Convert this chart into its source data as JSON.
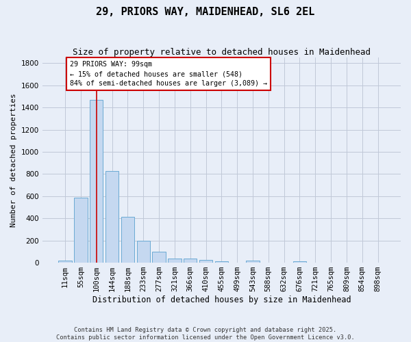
{
  "title": "29, PRIORS WAY, MAIDENHEAD, SL6 2EL",
  "subtitle": "Size of property relative to detached houses in Maidenhead",
  "xlabel": "Distribution of detached houses by size in Maidenhead",
  "ylabel": "Number of detached properties",
  "categories": [
    "11sqm",
    "55sqm",
    "100sqm",
    "144sqm",
    "188sqm",
    "233sqm",
    "277sqm",
    "321sqm",
    "366sqm",
    "410sqm",
    "455sqm",
    "499sqm",
    "543sqm",
    "588sqm",
    "632sqm",
    "676sqm",
    "721sqm",
    "765sqm",
    "809sqm",
    "854sqm",
    "898sqm"
  ],
  "bar_heights": [
    20,
    585,
    1470,
    830,
    415,
    200,
    100,
    40,
    35,
    25,
    15,
    0,
    20,
    0,
    0,
    15,
    0,
    0,
    0,
    0,
    0
  ],
  "bar_color": "#c5d8f0",
  "bar_edge_color": "#6aaad4",
  "vline_x_index": 2,
  "vline_color": "#cc0000",
  "annotation_text": "29 PRIORS WAY: 99sqm\n← 15% of detached houses are smaller (548)\n84% of semi-detached houses are larger (3,089) →",
  "annotation_box_color": "#ffffff",
  "annotation_box_edge": "#cc0000",
  "ylim": [
    0,
    1850
  ],
  "yticks": [
    0,
    200,
    400,
    600,
    800,
    1000,
    1200,
    1400,
    1600,
    1800
  ],
  "title_fontsize": 11,
  "subtitle_fontsize": 9,
  "axis_label_fontsize": 8,
  "tick_fontsize": 7.5,
  "footer_text": "Contains HM Land Registry data © Crown copyright and database right 2025.\nContains public sector information licensed under the Open Government Licence v3.0.",
  "background_color": "#e8eef8",
  "plot_background": "#e8eef8",
  "grid_color": "#c0c8d8"
}
